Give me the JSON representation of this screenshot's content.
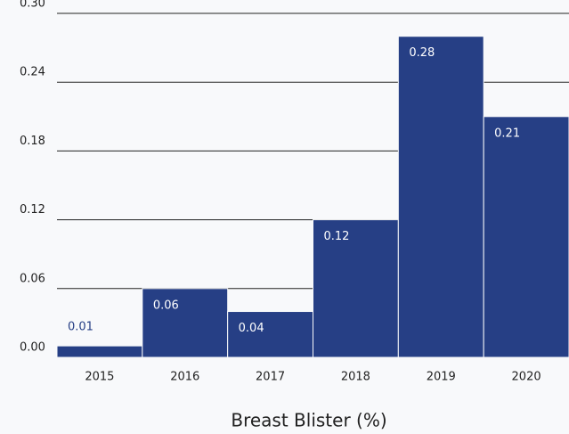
{
  "chart_data": {
    "type": "bar",
    "x_label": "Breast Blister (%)",
    "categories": [
      "2015",
      "2016",
      "2017",
      "2018",
      "2019",
      "2020"
    ],
    "values": [
      0.01,
      0.06,
      0.04,
      0.12,
      0.28,
      0.21
    ],
    "color": "#263f85",
    "ylim": [
      0,
      0.3
    ],
    "yticks": [
      {
        "value": 0,
        "label": "0.00"
      },
      0.06,
      0.12,
      0.18,
      0.24,
      {
        "value": 0.3,
        "label": "0.30"
      }
    ],
    "grid": true
  }
}
